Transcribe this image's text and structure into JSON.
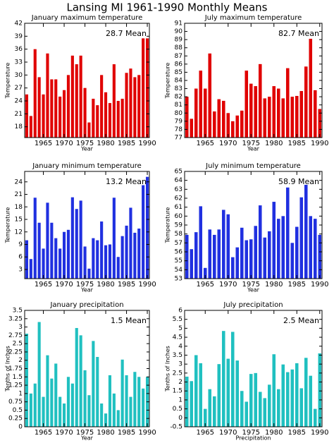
{
  "title": "Lansing MI  1961-1990 Monthly Means",
  "chart_data": [
    {
      "type": "bar",
      "title": "January maximum temperature",
      "annotation": "28.7 Mean",
      "xlabel": "Year",
      "ylabel": "Temperature",
      "color": "#e00000",
      "x": [
        1961,
        1962,
        1963,
        1964,
        1965,
        1966,
        1967,
        1968,
        1969,
        1970,
        1971,
        1972,
        1973,
        1974,
        1975,
        1976,
        1977,
        1978,
        1979,
        1980,
        1981,
        1982,
        1983,
        1984,
        1985,
        1986,
        1987,
        1988,
        1989,
        1990
      ],
      "values": [
        25.5,
        20.5,
        36,
        29.5,
        25.5,
        35,
        29,
        29,
        25,
        26.5,
        30,
        34.5,
        32.5,
        34.5,
        27,
        19,
        24.5,
        23,
        30,
        26,
        23.5,
        32.5,
        24,
        24.5,
        30.5,
        31.5,
        29.5,
        30,
        38.5,
        38.5
      ],
      "xlim": [
        1960.5,
        1990.5
      ],
      "ylim": [
        15.5,
        42
      ],
      "xticks": [
        1965,
        1970,
        1975,
        1980,
        1985,
        1990
      ],
      "yticks": [
        18,
        21,
        24,
        27,
        30,
        33,
        36,
        39,
        42
      ]
    },
    {
      "type": "bar",
      "title": "July maximum temperature",
      "annotation": "82.7 Mean",
      "xlabel": "Year",
      "ylabel": "Temperature",
      "color": "#e00000",
      "x": [
        1961,
        1962,
        1963,
        1964,
        1965,
        1966,
        1967,
        1968,
        1969,
        1970,
        1971,
        1972,
        1973,
        1974,
        1975,
        1976,
        1977,
        1978,
        1979,
        1980,
        1981,
        1982,
        1983,
        1984,
        1985,
        1986,
        1987,
        1988,
        1989,
        1990
      ],
      "values": [
        82,
        79.3,
        83,
        85.2,
        83,
        87.3,
        80.2,
        81.7,
        81.5,
        80,
        79,
        79.7,
        80.3,
        85.2,
        83.6,
        83.3,
        86,
        81.8,
        82,
        83.3,
        83,
        81.8,
        85.5,
        82,
        82.1,
        82.7,
        85.7,
        89.1,
        82.8,
        80.5
      ],
      "xlim": [
        1960.5,
        1990.5
      ],
      "ylim": [
        77,
        91
      ],
      "xticks": [
        1965,
        1970,
        1975,
        1980,
        1985,
        1990
      ],
      "yticks": [
        77,
        78,
        79,
        80,
        81,
        82,
        83,
        84,
        85,
        86,
        87,
        88,
        89,
        90,
        91
      ]
    },
    {
      "type": "bar",
      "title": "January minimum temperature",
      "annotation": "13.2 Mean",
      "xlabel": "Year",
      "ylabel": "Temperature",
      "color": "#2030e0",
      "x": [
        1961,
        1962,
        1963,
        1964,
        1965,
        1966,
        1967,
        1968,
        1969,
        1970,
        1971,
        1972,
        1973,
        1974,
        1975,
        1976,
        1977,
        1978,
        1979,
        1980,
        1981,
        1982,
        1983,
        1984,
        1985,
        1986,
        1987,
        1988,
        1989,
        1990
      ],
      "values": [
        10,
        5.5,
        20.2,
        14.2,
        8,
        19,
        14.2,
        10.5,
        8,
        12,
        12.5,
        20.3,
        17.5,
        19.5,
        8.5,
        3.2,
        10.5,
        10,
        14.5,
        8.8,
        9,
        20.2,
        6,
        11,
        13.5,
        17.8,
        11.8,
        12.8,
        23.2,
        25.2
      ],
      "xlim": [
        1960.5,
        1990.5
      ],
      "ylim": [
        0.8,
        26.5
      ],
      "xticks": [
        1965,
        1970,
        1975,
        1980,
        1985,
        1990
      ],
      "yticks": [
        3,
        6,
        9,
        12,
        15,
        18,
        21,
        24
      ]
    },
    {
      "type": "bar",
      "title": "July minimum temperature",
      "annotation": "58.9 Mean",
      "xlabel": "Year",
      "ylabel": "Temperature",
      "color": "#2030e0",
      "x": [
        1961,
        1962,
        1963,
        1964,
        1965,
        1966,
        1967,
        1968,
        1969,
        1970,
        1971,
        1972,
        1973,
        1974,
        1975,
        1976,
        1977,
        1978,
        1979,
        1980,
        1981,
        1982,
        1983,
        1984,
        1985,
        1986,
        1987,
        1988,
        1989,
        1990
      ],
      "values": [
        57.9,
        56.3,
        58.2,
        61.1,
        54.2,
        58.5,
        57.9,
        58.5,
        60.7,
        60.2,
        55.4,
        56.5,
        58.7,
        57.3,
        57.4,
        58.9,
        61.2,
        57.6,
        58.3,
        61.6,
        59.7,
        60,
        63.2,
        57,
        58.8,
        62.1,
        63.5,
        60,
        59.7,
        57.9
      ],
      "xlim": [
        1960.5,
        1990.5
      ],
      "ylim": [
        53,
        65
      ],
      "xticks": [
        1965,
        1970,
        1975,
        1980,
        1985,
        1990
      ],
      "yticks": [
        53,
        54,
        55,
        56,
        57,
        58,
        59,
        60,
        61,
        62,
        63,
        64,
        65
      ]
    },
    {
      "type": "bar",
      "title": "January precipitation",
      "annotation": "1.5 Mean",
      "xlabel": "Year",
      "ylabel": "Tenths of Inches",
      "color": "#20c0c0",
      "x": [
        1961,
        1962,
        1963,
        1964,
        1965,
        1966,
        1967,
        1968,
        1969,
        1970,
        1971,
        1972,
        1973,
        1974,
        1975,
        1976,
        1977,
        1978,
        1979,
        1980,
        1981,
        1982,
        1983,
        1984,
        1985,
        1986,
        1987,
        1988,
        1989,
        1990
      ],
      "values": [
        2.8,
        1,
        1.3,
        3.15,
        0.9,
        2.15,
        1.45,
        1.9,
        0.9,
        0.7,
        1.5,
        1.3,
        2.97,
        2.75,
        1.7,
        0.95,
        2.58,
        2.1,
        0.7,
        0.4,
        1.55,
        1,
        0.5,
        2.02,
        1.55,
        0.9,
        1.65,
        1.5,
        1.15,
        1.5
      ],
      "xlim": [
        1960.5,
        1990.5
      ],
      "ylim": [
        0,
        3.5
      ],
      "xticks": [
        1965,
        1970,
        1975,
        1980,
        1985,
        1990
      ],
      "yticks": [
        0,
        0.25,
        0.5,
        0.75,
        1,
        1.25,
        1.5,
        1.75,
        2,
        2.25,
        2.5,
        2.75,
        3,
        3.25,
        3.5
      ]
    },
    {
      "type": "bar",
      "title": "July precipitation",
      "annotation": "2.5 Mean",
      "xlabel": "Precipitation",
      "ylabel": "Tenths of Inches",
      "color": "#20c0c0",
      "x": [
        1961,
        1962,
        1963,
        1964,
        1965,
        1966,
        1967,
        1968,
        1969,
        1970,
        1971,
        1972,
        1973,
        1974,
        1975,
        1976,
        1977,
        1978,
        1979,
        1980,
        1981,
        1982,
        1983,
        1984,
        1985,
        1986,
        1987,
        1988,
        1989,
        1990
      ],
      "values": [
        2.3,
        2.05,
        3.5,
        3.05,
        0.5,
        1.6,
        1.2,
        3,
        4.85,
        3.3,
        4.8,
        3.2,
        1.5,
        0.9,
        2.45,
        2.5,
        1.45,
        1.1,
        1.85,
        3.55,
        1.6,
        2.98,
        2.55,
        2.7,
        3.05,
        1.65,
        3.35,
        2.35,
        0.5,
        3.6
      ],
      "xlim": [
        1960.5,
        1990.5
      ],
      "ylim": [
        -0.5,
        6
      ],
      "xticks": [
        1965,
        1970,
        1975,
        1980,
        1985,
        1990
      ],
      "yticks": [
        -0.5,
        0,
        0.5,
        1,
        1.5,
        2,
        2.5,
        3,
        3.5,
        4,
        4.5,
        5,
        5.5,
        6
      ]
    }
  ]
}
